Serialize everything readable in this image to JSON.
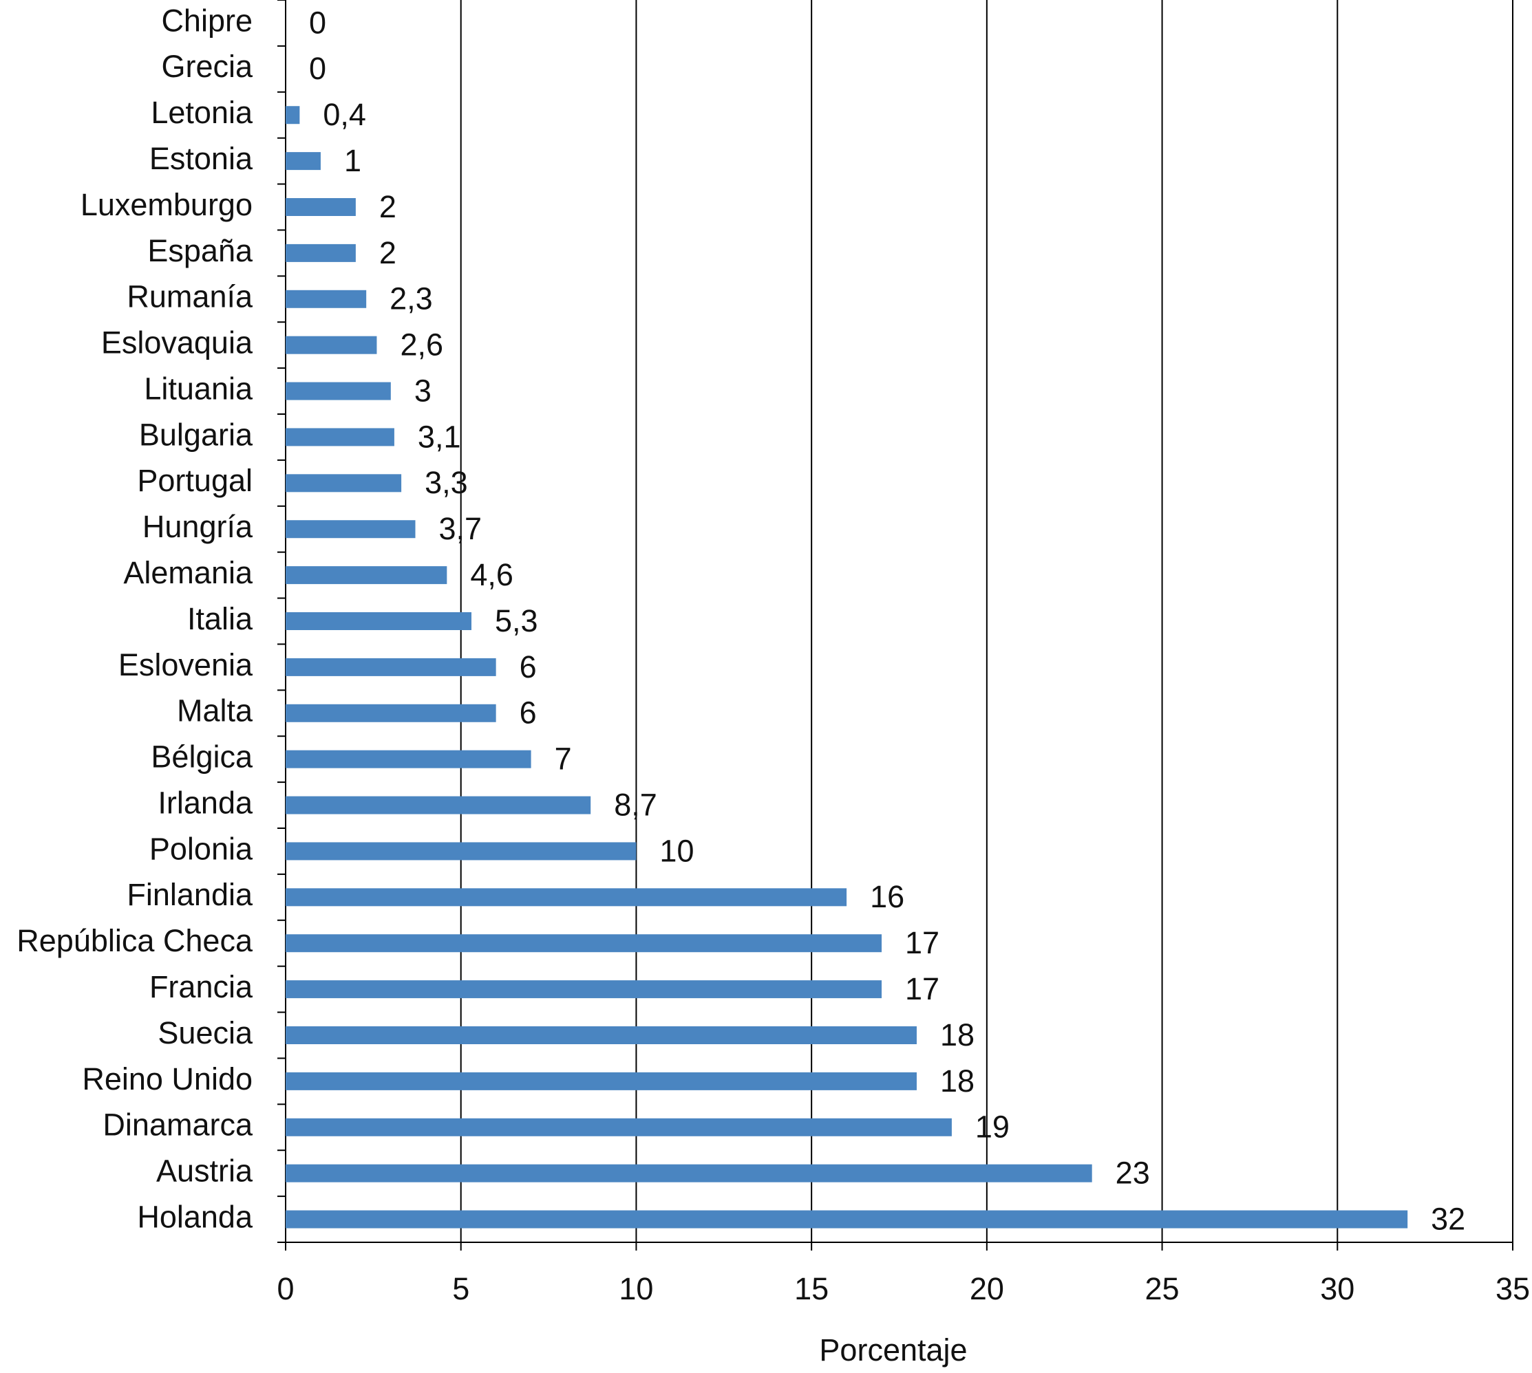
{
  "chart_data": {
    "type": "bar",
    "orientation": "horizontal",
    "categories": [
      "Chipre",
      "Grecia",
      "Letonia",
      "Estonia",
      "Luxemburgo",
      "España",
      "Rumanía",
      "Eslovaquia",
      "Lituania",
      "Bulgaria",
      "Portugal",
      "Hungría",
      "Alemania",
      "Italia",
      "Eslovenia",
      "Malta",
      "Bélgica",
      "Irlanda",
      "Polonia",
      "Finlandia",
      "República Checa",
      "Francia",
      "Suecia",
      "Reino Unido",
      "Dinamarca",
      "Austria",
      "Holanda"
    ],
    "values": [
      0,
      0,
      0.4,
      1,
      2,
      2,
      2.3,
      2.6,
      3,
      3.1,
      3.3,
      3.7,
      4.6,
      5.3,
      6,
      6,
      7,
      8.7,
      10,
      16,
      17,
      17,
      18,
      18,
      19,
      23,
      32
    ],
    "value_labels": [
      "0",
      "0",
      "0,4",
      "1",
      "2",
      "2",
      "2,3",
      "2,6",
      "3",
      "3,1",
      "3,3",
      "3,7",
      "4,6",
      "5,3",
      "6",
      "6",
      "7",
      "8,7",
      "10",
      "16",
      "17",
      "17",
      "18",
      "18",
      "19",
      "23",
      "32"
    ],
    "color": "#4a85c1",
    "xlabel": "Porcentaje",
    "xlim": [
      0,
      35
    ],
    "xticks": [
      0,
      5,
      10,
      15,
      20,
      25,
      30,
      35
    ],
    "grid": true
  }
}
